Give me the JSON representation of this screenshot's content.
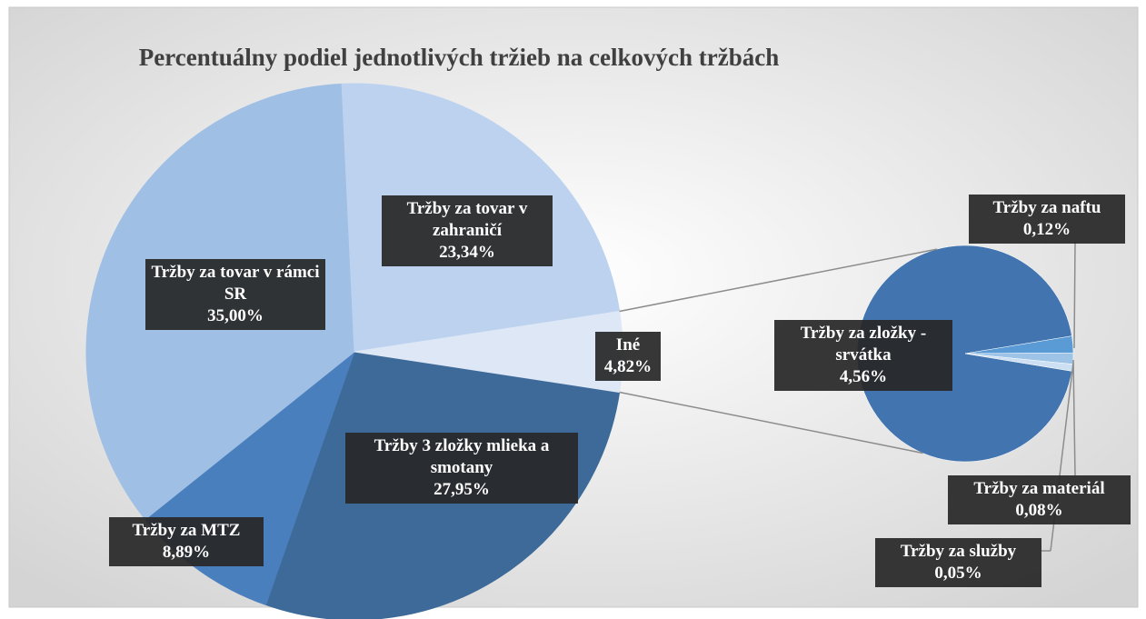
{
  "chart_data": {
    "type": "pie_of_pie",
    "title": "Percentuálny podiel jednotlivých tržieb na celkových tržbách",
    "categories": [
      "Tržby 3 zložky mlieka a smotany",
      "Tržby za MTZ",
      "Tržby za tovar v rámci SR",
      "Tržby za tovar v zahraničí",
      "Iné"
    ],
    "values": [
      27.95,
      8.89,
      35.0,
      23.34,
      4.82
    ],
    "value_labels": [
      "27,95%",
      "8,89%",
      "35,00%",
      "23,34%",
      "4,82%"
    ],
    "colors": [
      "#3d6a98",
      "#4a7fbd",
      "#9fbfe5",
      "#bcd2ee",
      "#dde7f5"
    ],
    "secondary": {
      "categories": [
        "Tržby za zložky - srvátka",
        "Tržby za naftu",
        "Tržby za materiál",
        "Tržby za služby"
      ],
      "values": [
        4.56,
        0.12,
        0.08,
        0.05
      ],
      "value_labels": [
        "4,56%",
        "0,12%",
        "0,08%",
        "0,05%"
      ],
      "colors": [
        "#4274b0",
        "#5b9bd5",
        "#9dc3e6",
        "#cddff2"
      ]
    }
  }
}
